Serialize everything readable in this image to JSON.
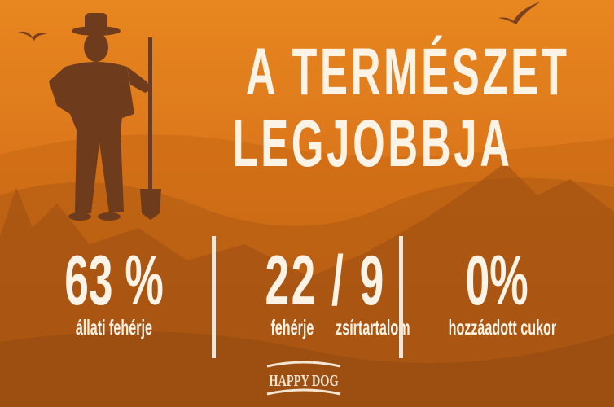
{
  "title": {
    "line1": "A TERMÉSZET",
    "line2": "LEGJOBBJA"
  },
  "stats": [
    {
      "value": "63 %",
      "label": "állati fehérje"
    },
    {
      "value_left": "22",
      "separator": "/",
      "value_right": "9",
      "label_left": "fehérje",
      "label_right": "zsírtartalom"
    },
    {
      "value": "0%",
      "label": "hozzáadott cukor"
    }
  ],
  "logo": {
    "text": "HAPPY DOG"
  },
  "icons": [
    "farmer-with-shovel-icon",
    "bird-icon"
  ],
  "colors": {
    "sky_top": "#e8861f",
    "sky_bottom": "#a85410",
    "silhouette": "#6e3b1c",
    "text": "#fbf3e6"
  }
}
